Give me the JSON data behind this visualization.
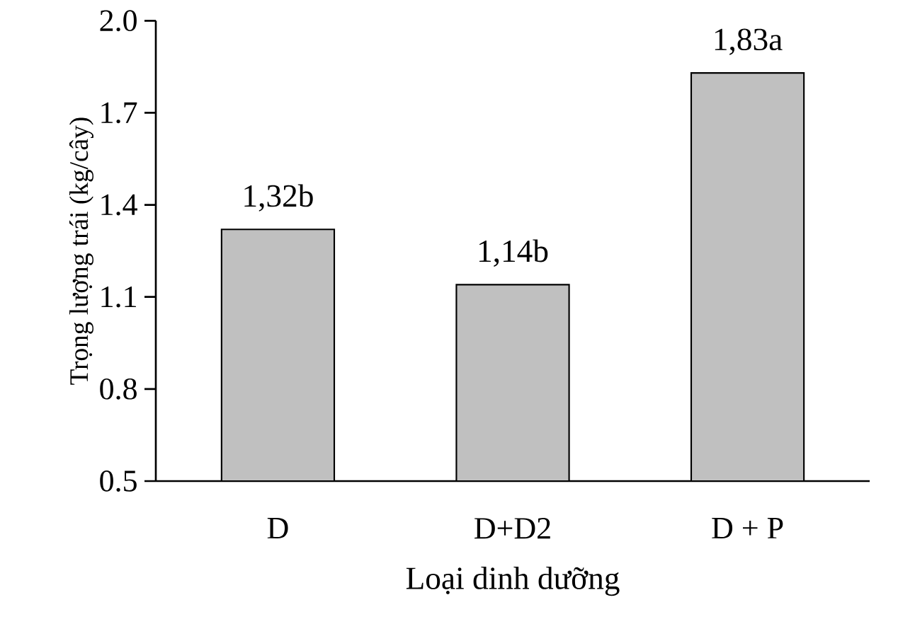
{
  "chart_data": {
    "type": "bar",
    "xlabel": "Loại dinh dưỡng",
    "ylabel": "Trọng lượng trái (kg/cây)",
    "categories": [
      "D",
      "D+D2",
      "D + P"
    ],
    "values": [
      1.32,
      1.14,
      1.83
    ],
    "value_labels": [
      "1,32b",
      "1,14b",
      "1,83a"
    ],
    "color": "#c0c0c0",
    "ylim": [
      0.5,
      2.0
    ],
    "yticks": [
      0.5,
      0.8,
      1.1,
      1.4,
      1.7,
      {
        "value": 2.0,
        "label": "2.0"
      }
    ],
    "grid": false
  }
}
